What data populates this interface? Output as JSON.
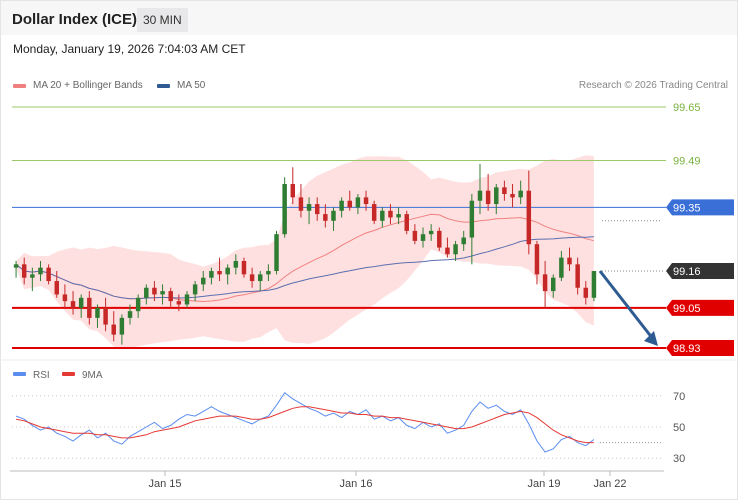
{
  "header": {
    "title": "Dollar Index (ICE)",
    "interval": "30 MIN",
    "timestamp": "Monday, January 19, 2026 7:04:03 AM CET"
  },
  "legend": {
    "ma20_label": "MA 20 + Bollinger Bands",
    "ma50_label": "MA 50",
    "copyright": "Research © 2026 Trading Central"
  },
  "rsi_legend": {
    "rsi_label": "RSI",
    "ma_label": "9MA"
  },
  "colors": {
    "bull": "#2e7d32",
    "bear": "#c62828",
    "bollinger": "#ffd6d6",
    "ma20": "#f08080",
    "ma50": "#5a6fb0",
    "support": "#e00000",
    "pivot": "#3a6fd8",
    "resistance": "#8bc34a",
    "arrow": "#2f5b93",
    "rsi": "#5b8def",
    "rsi_ma": "#e53935"
  },
  "chart_data": {
    "type": "candlestick",
    "price_axis": {
      "min": 98.93,
      "max": 99.65
    },
    "levels": [
      {
        "label": "99.65",
        "value": 99.65,
        "kind": "resistance"
      },
      {
        "label": "99.49",
        "value": 99.49,
        "kind": "resistance"
      },
      {
        "label": "99.35",
        "value": 99.35,
        "kind": "pivot"
      },
      {
        "label": "99.16",
        "value": 99.16,
        "kind": "last"
      },
      {
        "label": "99.05",
        "value": 99.05,
        "kind": "support"
      },
      {
        "label": "98.93",
        "value": 98.93,
        "kind": "support"
      }
    ],
    "x_ticks": [
      "Jan 15",
      "Jan 16",
      "Jan 19",
      "Jan 22"
    ],
    "candles": [
      [
        99.17,
        99.19,
        99.14,
        99.18
      ],
      [
        99.18,
        99.2,
        99.12,
        99.14
      ],
      [
        99.14,
        99.17,
        99.1,
        99.15
      ],
      [
        99.15,
        99.19,
        99.13,
        99.17
      ],
      [
        99.17,
        99.18,
        99.12,
        99.13
      ],
      [
        99.13,
        99.16,
        99.08,
        99.09
      ],
      [
        99.09,
        99.12,
        99.05,
        99.07
      ],
      [
        99.07,
        99.1,
        99.03,
        99.05
      ],
      [
        99.05,
        99.09,
        99.02,
        99.08
      ],
      [
        99.08,
        99.1,
        99.0,
        99.02
      ],
      [
        99.02,
        99.06,
        98.99,
        99.05
      ],
      [
        99.05,
        99.08,
        98.98,
        99.0
      ],
      [
        99.0,
        99.04,
        98.95,
        98.97
      ],
      [
        98.97,
        99.03,
        98.94,
        99.02
      ],
      [
        99.02,
        99.06,
        99.0,
        99.04
      ],
      [
        99.04,
        99.09,
        99.02,
        99.08
      ],
      [
        99.08,
        99.12,
        99.06,
        99.11
      ],
      [
        99.11,
        99.13,
        99.07,
        99.09
      ],
      [
        99.09,
        99.12,
        99.06,
        99.1
      ],
      [
        99.1,
        99.11,
        99.05,
        99.07
      ],
      [
        99.07,
        99.09,
        99.04,
        99.06
      ],
      [
        99.06,
        99.1,
        99.05,
        99.09
      ],
      [
        99.09,
        99.13,
        99.07,
        99.12
      ],
      [
        99.12,
        99.16,
        99.1,
        99.14
      ],
      [
        99.14,
        99.17,
        99.12,
        99.16
      ],
      [
        99.16,
        99.2,
        99.13,
        99.15
      ],
      [
        99.15,
        99.18,
        99.12,
        99.17
      ],
      [
        99.17,
        99.21,
        99.15,
        99.19
      ],
      [
        99.19,
        99.2,
        99.14,
        99.15
      ],
      [
        99.15,
        99.17,
        99.11,
        99.13
      ],
      [
        99.13,
        99.16,
        99.1,
        99.15
      ],
      [
        99.15,
        99.18,
        99.13,
        99.16
      ],
      [
        99.16,
        99.28,
        99.15,
        99.27
      ],
      [
        99.27,
        99.44,
        99.26,
        99.42
      ],
      [
        99.42,
        99.47,
        99.36,
        99.38
      ],
      [
        99.38,
        99.42,
        99.32,
        99.34
      ],
      [
        99.34,
        99.38,
        99.3,
        99.36
      ],
      [
        99.36,
        99.38,
        99.31,
        99.33
      ],
      [
        99.33,
        99.36,
        99.29,
        99.31
      ],
      [
        99.31,
        99.35,
        99.28,
        99.34
      ],
      [
        99.34,
        99.38,
        99.32,
        99.37
      ],
      [
        99.37,
        99.4,
        99.34,
        99.35
      ],
      [
        99.35,
        99.39,
        99.33,
        99.38
      ],
      [
        99.38,
        99.4,
        99.34,
        99.36
      ],
      [
        99.36,
        99.37,
        99.3,
        99.31
      ],
      [
        99.31,
        99.35,
        99.29,
        99.34
      ],
      [
        99.34,
        99.36,
        99.3,
        99.32
      ],
      [
        99.32,
        99.35,
        99.3,
        99.33
      ],
      [
        99.33,
        99.34,
        99.27,
        99.28
      ],
      [
        99.28,
        99.3,
        99.24,
        99.25
      ],
      [
        99.25,
        99.29,
        99.23,
        99.27
      ],
      [
        99.27,
        99.3,
        99.25,
        99.28
      ],
      [
        99.28,
        99.29,
        99.22,
        99.23
      ],
      [
        99.23,
        99.26,
        99.2,
        99.21
      ],
      [
        99.21,
        99.25,
        99.19,
        99.24
      ],
      [
        99.24,
        99.28,
        99.22,
        99.26
      ],
      [
        99.26,
        99.39,
        99.18,
        99.37
      ],
      [
        99.37,
        99.48,
        99.33,
        99.4
      ],
      [
        99.4,
        99.45,
        99.34,
        99.36
      ],
      [
        99.36,
        99.42,
        99.33,
        99.41
      ],
      [
        99.41,
        99.43,
        99.37,
        99.39
      ],
      [
        99.39,
        99.42,
        99.35,
        99.38
      ],
      [
        99.38,
        99.43,
        99.36,
        99.4
      ],
      [
        99.4,
        99.46,
        99.21,
        99.24
      ],
      [
        99.24,
        99.25,
        99.12,
        99.15
      ],
      [
        99.15,
        99.19,
        99.05,
        99.1
      ],
      [
        99.1,
        99.15,
        99.08,
        99.14
      ],
      [
        99.14,
        99.22,
        99.13,
        99.2
      ],
      [
        99.2,
        99.23,
        99.16,
        99.18
      ],
      [
        99.18,
        99.2,
        99.09,
        99.11
      ],
      [
        99.11,
        99.13,
        99.06,
        99.08
      ],
      [
        99.08,
        99.16,
        99.07,
        99.16
      ]
    ],
    "rsi_axis": {
      "min": 25,
      "max": 75,
      "ticks": [
        "70",
        "50",
        "30"
      ]
    },
    "rsi": [
      57,
      55,
      51,
      48,
      50,
      46,
      44,
      41,
      45,
      48,
      43,
      46,
      41,
      39,
      44,
      47,
      50,
      53,
      49,
      51,
      55,
      58,
      57,
      60,
      63,
      60,
      58,
      56,
      54,
      52,
      55,
      57,
      64,
      72,
      68,
      65,
      62,
      60,
      57,
      59,
      56,
      60,
      58,
      61,
      55,
      57,
      54,
      56,
      51,
      49,
      53,
      50,
      52,
      46,
      48,
      51,
      60,
      66,
      62,
      64,
      60,
      58,
      61,
      52,
      41,
      34,
      36,
      42,
      44,
      40,
      38,
      42
    ],
    "rsi_ma": [
      55,
      54,
      52,
      50,
      49,
      48,
      47,
      46,
      46,
      46,
      45,
      45,
      44,
      43,
      43,
      44,
      45,
      47,
      48,
      49,
      50,
      52,
      54,
      55,
      56,
      57,
      57,
      57,
      56,
      55,
      55,
      56,
      58,
      60,
      62,
      63,
      63,
      62,
      61,
      60,
      59,
      59,
      58,
      58,
      57,
      57,
      56,
      56,
      55,
      54,
      53,
      52,
      51,
      50,
      49,
      49,
      50,
      52,
      54,
      56,
      58,
      59,
      60,
      59,
      56,
      52,
      48,
      45,
      43,
      41,
      40,
      40
    ]
  }
}
